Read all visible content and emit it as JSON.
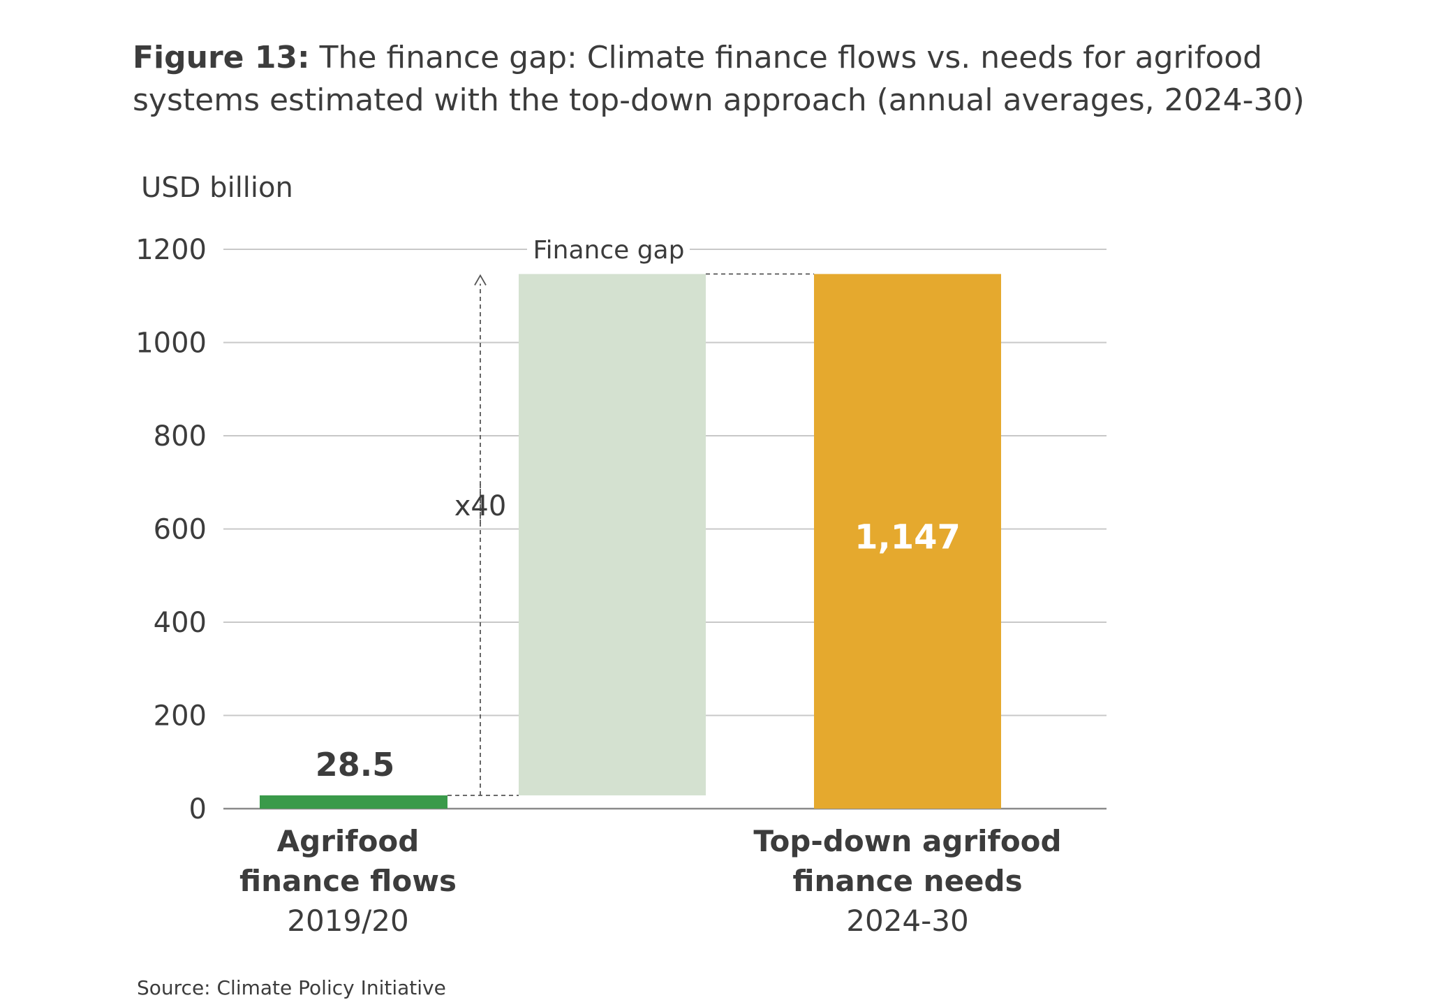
{
  "figure": {
    "label": "Figure 13:",
    "title": "The finance gap: Climate finance flows vs. needs for agrifood systems estimated with the top-down approach (annual averages, 2024-30)",
    "source": "Source: Climate Policy Initiative"
  },
  "chart_data": {
    "type": "bar",
    "ylabel": "USD billion",
    "ylim": [
      0,
      1200
    ],
    "yticks": [
      0,
      200,
      400,
      600,
      800,
      1000,
      1200
    ],
    "grid": true,
    "categories": [
      {
        "lines": [
          "Agrifood",
          "finance flows"
        ],
        "period": "2019/20"
      },
      {
        "lines": [
          "Top-down agrifood",
          "finance needs"
        ],
        "period": "2024-30"
      }
    ],
    "bars": [
      {
        "name": "flows",
        "value": 28.5,
        "label": "28.5",
        "color": "#3a9a4a"
      },
      {
        "name": "gap",
        "base": 28.5,
        "value": 1147,
        "label": "",
        "color": "#d4e1d0"
      },
      {
        "name": "needs",
        "value": 1147,
        "label": "1,147",
        "color": "#e5a92e"
      }
    ],
    "annotations": {
      "gap_label": "Finance gap",
      "multiplier": "x40"
    }
  }
}
